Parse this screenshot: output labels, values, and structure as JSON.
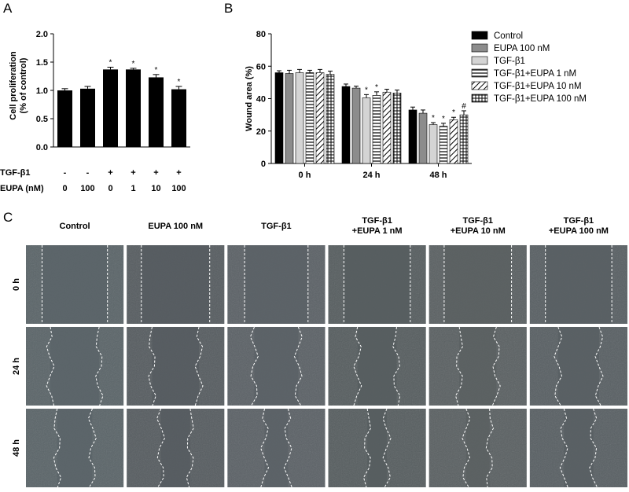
{
  "panels": {
    "a": "A",
    "b": "B",
    "c": "C"
  },
  "chart_data": [
    {
      "type": "bar",
      "ylabel": "Cell proliferation\n(% of control)",
      "ylim": [
        0,
        2.0
      ],
      "yticks": [
        "0.0",
        "0.5",
        "1.0",
        "1.5",
        "2.0"
      ],
      "ytick_values": [
        0,
        0.5,
        1.0,
        1.5,
        2.0
      ],
      "values": [
        1.0,
        1.03,
        1.37,
        1.37,
        1.23,
        1.02
      ],
      "errors": [
        0.03,
        0.04,
        0.04,
        0.02,
        0.05,
        0.05
      ],
      "significance": [
        "",
        "",
        "*",
        "*",
        "*",
        "*"
      ],
      "factor_rows": [
        {
          "label": "TGF-β1",
          "values": [
            "-",
            "-",
            "+",
            "+",
            "+",
            "+"
          ]
        },
        {
          "label": "EUPA (nM)",
          "values": [
            "0",
            "100",
            "0",
            "1",
            "10",
            "100"
          ]
        }
      ]
    },
    {
      "type": "bar",
      "ylabel": "Wound area (%)",
      "ylim": [
        0,
        80
      ],
      "yticks": [
        "0",
        "20",
        "40",
        "60",
        "80"
      ],
      "ytick_values": [
        0,
        20,
        40,
        60,
        80
      ],
      "categories": [
        "0 h",
        "24 h",
        "48 h"
      ],
      "series": [
        {
          "name": "Control",
          "values": [
            56,
            47.5,
            33
          ],
          "errors": [
            1.2,
            1.5,
            1.8
          ],
          "significance": [
            "",
            "",
            ""
          ],
          "fill": "#000000"
        },
        {
          "name": "EUPA 100 nM",
          "values": [
            55.5,
            46.5,
            31
          ],
          "errors": [
            2,
            1.2,
            2
          ],
          "significance": [
            "",
            "",
            ""
          ],
          "fill": "#8c8c8c"
        },
        {
          "name": "TGF-β1",
          "values": [
            56,
            40.5,
            24
          ],
          "errors": [
            2,
            2,
            1.2
          ],
          "significance": [
            "",
            "*",
            "*"
          ],
          "fill": "#d4d4d4"
        },
        {
          "name": "TGF-β1+EUPA 1 nM",
          "values": [
            56,
            42,
            23
          ],
          "errors": [
            1.5,
            2.2,
            1.8
          ],
          "significance": [
            "",
            "*",
            "*"
          ],
          "fill": "hlines"
        },
        {
          "name": "TGF-β1+EUPA 10 nM",
          "values": [
            56,
            44,
            27
          ],
          "errors": [
            2,
            1.8,
            1.5
          ],
          "significance": [
            "",
            "",
            "*"
          ],
          "fill": "diag"
        },
        {
          "name": "TGF-β1+EUPA 100 nM",
          "values": [
            55,
            43.5,
            30
          ],
          "errors": [
            2,
            1.8,
            2.5
          ],
          "significance": [
            "",
            "",
            "#"
          ],
          "fill": "grid"
        }
      ]
    }
  ],
  "micrographs": {
    "columns": [
      "Control",
      "EUPA 100 nM",
      "TGF-β1",
      "TGF-β1\n+EUPA 1 nM",
      "TGF-β1\n+EUPA 10 nM",
      "TGF-β1\n+EUPA 100 nM"
    ],
    "rows": [
      "0 h",
      "24 h",
      "48 h"
    ],
    "gap_fraction": [
      [
        0.67,
        0.7,
        0.65,
        0.68,
        0.69,
        0.68
      ],
      [
        0.5,
        0.48,
        0.45,
        0.4,
        0.38,
        0.42
      ],
      [
        0.36,
        0.3,
        0.24,
        0.2,
        0.24,
        0.3
      ]
    ]
  }
}
